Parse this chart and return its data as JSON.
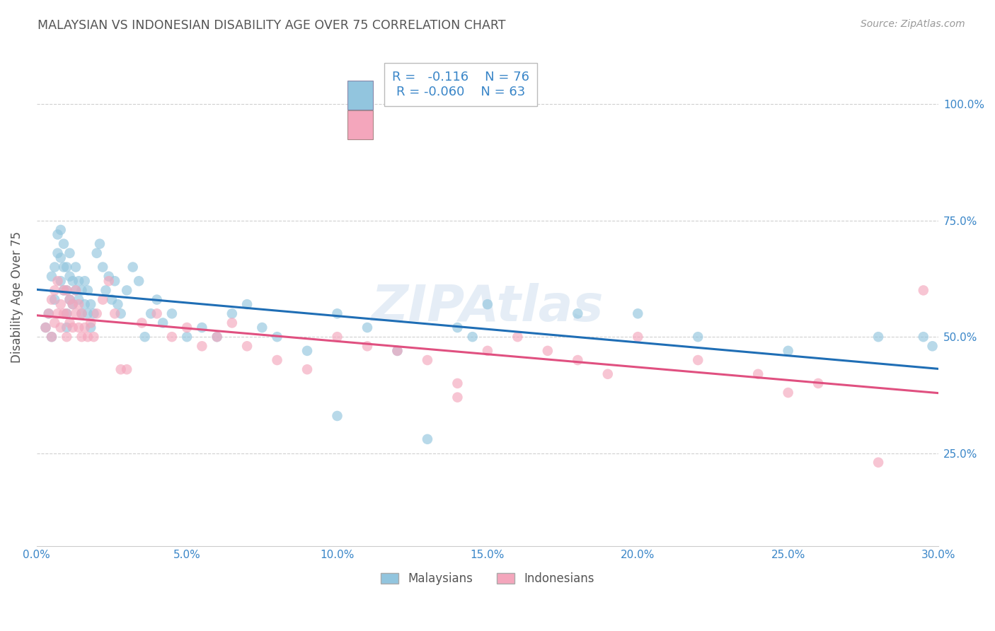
{
  "title": "MALAYSIAN VS INDONESIAN DISABILITY AGE OVER 75 CORRELATION CHART",
  "source": "Source: ZipAtlas.com",
  "ylabel": "Disability Age Over 75",
  "legend_label1": "Malaysians",
  "legend_label2": "Indonesians",
  "R1": "-0.116",
  "N1": "76",
  "R2": "-0.060",
  "N2": "63",
  "xlim": [
    0.0,
    30.0
  ],
  "ylim": [
    5.0,
    112.0
  ],
  "yticks": [
    25,
    50,
    75,
    100
  ],
  "ytick_labels": [
    "25.0%",
    "50.0%",
    "75.0%",
    "100.0%"
  ],
  "xtick_vals": [
    0.0,
    5.0,
    10.0,
    15.0,
    20.0,
    25.0,
    30.0
  ],
  "color_blue": "#92c5de",
  "color_pink": "#f4a6bc",
  "color_blue_line": "#1f6eb5",
  "color_pink_line": "#e05080",
  "color_text_blue": "#3a86c8",
  "background_color": "#ffffff",
  "grid_color": "#d0d0d0",
  "title_color": "#555555",
  "malaysian_x": [
    0.3,
    0.4,
    0.5,
    0.5,
    0.6,
    0.6,
    0.7,
    0.7,
    0.8,
    0.8,
    0.8,
    0.9,
    0.9,
    0.9,
    1.0,
    1.0,
    1.0,
    1.0,
    1.1,
    1.1,
    1.1,
    1.2,
    1.2,
    1.3,
    1.3,
    1.4,
    1.4,
    1.5,
    1.5,
    1.6,
    1.6,
    1.7,
    1.7,
    1.8,
    1.8,
    1.9,
    2.0,
    2.1,
    2.2,
    2.3,
    2.4,
    2.5,
    2.6,
    2.7,
    2.8,
    3.0,
    3.2,
    3.4,
    3.6,
    3.8,
    4.0,
    4.2,
    4.5,
    5.0,
    5.5,
    6.0,
    6.5,
    7.0,
    7.5,
    8.0,
    9.0,
    10.0,
    11.0,
    12.0,
    14.0,
    14.5,
    15.0,
    18.0,
    20.0,
    22.0,
    25.0,
    28.0,
    29.5,
    29.8,
    10.0,
    13.0
  ],
  "malaysian_y": [
    52,
    55,
    50,
    63,
    58,
    65,
    68,
    72,
    62,
    67,
    73,
    60,
    65,
    70,
    55,
    60,
    65,
    52,
    58,
    63,
    68,
    62,
    57,
    60,
    65,
    58,
    62,
    55,
    60,
    57,
    62,
    55,
    60,
    57,
    52,
    55,
    68,
    70,
    65,
    60,
    63,
    58,
    62,
    57,
    55,
    60,
    65,
    62,
    50,
    55,
    58,
    53,
    55,
    50,
    52,
    50,
    55,
    57,
    52,
    50,
    47,
    55,
    52,
    47,
    52,
    50,
    57,
    55,
    55,
    50,
    47,
    50,
    50,
    48,
    33,
    28
  ],
  "indonesian_x": [
    0.3,
    0.4,
    0.5,
    0.5,
    0.6,
    0.6,
    0.7,
    0.7,
    0.8,
    0.8,
    0.9,
    0.9,
    1.0,
    1.0,
    1.0,
    1.1,
    1.1,
    1.2,
    1.2,
    1.3,
    1.3,
    1.4,
    1.4,
    1.5,
    1.5,
    1.6,
    1.7,
    1.8,
    1.9,
    2.0,
    2.2,
    2.4,
    2.6,
    2.8,
    3.0,
    3.5,
    4.0,
    4.5,
    5.0,
    5.5,
    6.0,
    6.5,
    7.0,
    8.0,
    9.0,
    10.0,
    11.0,
    12.0,
    13.0,
    14.0,
    15.0,
    16.0,
    17.0,
    18.0,
    19.0,
    20.0,
    22.0,
    24.0,
    26.0,
    28.0,
    29.5,
    14.0,
    25.0
  ],
  "indonesian_y": [
    52,
    55,
    50,
    58,
    53,
    60,
    55,
    62,
    52,
    57,
    55,
    60,
    50,
    55,
    60,
    53,
    58,
    52,
    57,
    55,
    60,
    52,
    57,
    50,
    55,
    52,
    50,
    53,
    50,
    55,
    58,
    62,
    55,
    43,
    43,
    53,
    55,
    50,
    52,
    48,
    50,
    53,
    48,
    45,
    43,
    50,
    48,
    47,
    45,
    40,
    47,
    50,
    47,
    45,
    42,
    50,
    45,
    42,
    40,
    23,
    60,
    37,
    38
  ],
  "watermark": "ZIPAtlas"
}
